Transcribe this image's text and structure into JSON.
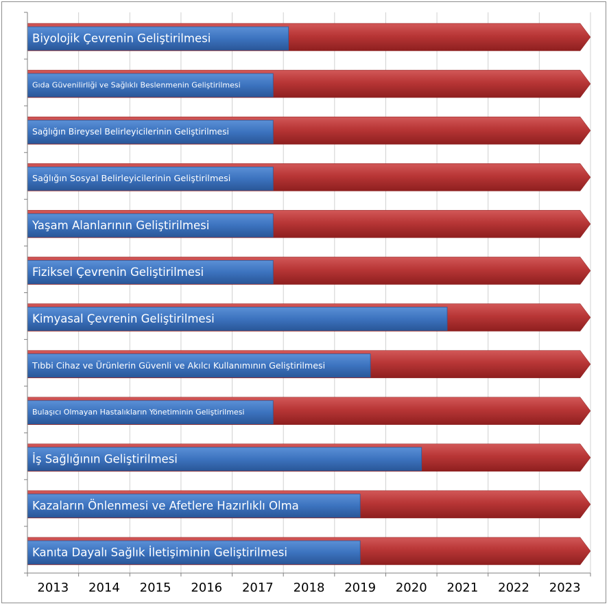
{
  "chart_data": {
    "type": "bar",
    "orientation": "horizontal",
    "x_ticks": [
      "2013",
      "2014",
      "2015",
      "2016",
      "2017",
      "2018",
      "2019",
      "2020",
      "2021",
      "2022",
      "2023"
    ],
    "xlim": [
      2013,
      2024
    ],
    "grid": true,
    "colors": {
      "target": "#b63434",
      "progress": "#3d74bd",
      "axis": "#7f7f7f"
    },
    "series": [
      {
        "role": "target",
        "values": [
          2024,
          2024,
          2024,
          2024,
          2024,
          2024,
          2024,
          2024,
          2024,
          2024,
          2024,
          2024
        ]
      },
      {
        "role": "progress",
        "values": [
          2018.1,
          2017.8,
          2017.8,
          2017.8,
          2017.8,
          2017.8,
          2021.2,
          2019.7,
          2017.8,
          2020.7,
          2019.5,
          2019.5
        ]
      }
    ],
    "categories": [
      "Biyolojik Çevrenin Geliştirilmesi",
      "Gıda Güvenilirliği ve Sağlıklı Beslenmenin Geliştirilmesi",
      "Sağlığın Bireysel Belirleyicilerinin Geliştirilmesi",
      "Sağlığın Sosyal Belirleyicilerinin Geliştirilmesi",
      "Yaşam Alanlarının Geliştirilmesi",
      "Fiziksel Çevrenin Geliştirilmesi",
      "Kimyasal Çevrenin Geliştirilmesi",
      "Tıbbi Cihaz ve Ürünlerin Güvenli ve Akılcı Kullanımının Geliştirilmesi",
      "Bulaşıcı Olmayan Hastalıkların Yönetiminin Geliştirilmesi",
      "İş Sağlığının Geliştirilmesi",
      "Kazaların Önlenmesi ve Afetlere Hazırlıklı Olma",
      "Kanıta Dayalı Sağlık İletişiminin Geliştirilmesi"
    ]
  }
}
